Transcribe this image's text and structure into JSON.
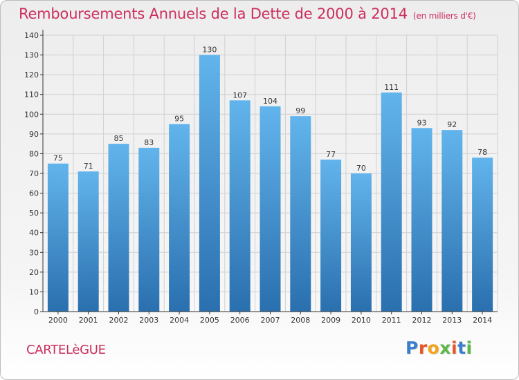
{
  "title": "Remboursements Annuels de la Dette de 2000 à 2014",
  "unit": "(en milliers d'€)",
  "commune": "CARTELèGUE",
  "logo": {
    "text": "Proxiti",
    "letter_colors": [
      "#3a7fcf",
      "#e8562a",
      "#f1a31d",
      "#59b847",
      "#e8562a",
      "#3a7fcf",
      "#59b847"
    ]
  },
  "colors": {
    "bar_top": "#62b4ec",
    "bar_bottom": "#2a6fae",
    "title": "#cc2f5d",
    "grid": "#d0d0d0",
    "axis": "#333333"
  },
  "chart_data": {
    "type": "bar",
    "categories": [
      "2000",
      "2001",
      "2002",
      "2003",
      "2004",
      "2005",
      "2006",
      "2007",
      "2008",
      "2009",
      "2010",
      "2011",
      "2012",
      "2013",
      "2014"
    ],
    "values": [
      75,
      71,
      85,
      83,
      95,
      130,
      107,
      104,
      99,
      77,
      70,
      111,
      93,
      92,
      78
    ],
    "ylim": [
      0,
      140
    ],
    "ytick_step": 10,
    "grid": true,
    "data_labels": true
  }
}
